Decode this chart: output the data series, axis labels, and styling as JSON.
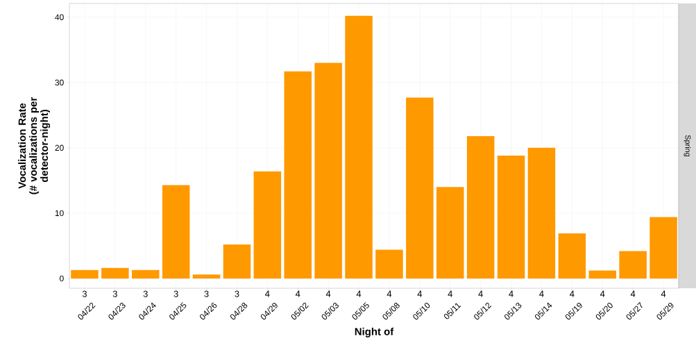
{
  "chart_data": {
    "type": "bar",
    "xlabel": "Night of",
    "ylabel": "Vocalization Rate\n(# vocalizations per\ndetector-night)",
    "categories": [
      "04/22",
      "04/23",
      "04/24",
      "04/25",
      "04/26",
      "04/28",
      "04/29",
      "05/02",
      "05/03",
      "05/05",
      "05/08",
      "05/10",
      "05/11",
      "05/12",
      "05/13",
      "05/14",
      "05/19",
      "05/20",
      "05/27",
      "05/29"
    ],
    "values": [
      1.3,
      1.6,
      1.3,
      14.3,
      0.6,
      5.2,
      16.4,
      31.7,
      33.0,
      40.2,
      4.4,
      27.7,
      14.0,
      21.8,
      18.8,
      20.0,
      6.9,
      1.2,
      4.2,
      9.4
    ],
    "color": "#ff9900",
    "ylim": [
      -1.5,
      42.1
    ],
    "yticks": [
      0,
      10,
      20,
      30,
      40
    ],
    "grid": true,
    "annotations": [
      "3",
      "3",
      "3",
      "3",
      "3",
      "3",
      "4",
      "4",
      "4",
      "4",
      "4",
      "4",
      "4",
      "4",
      "4",
      "4",
      "4",
      "4",
      "4",
      "4",
      "Spring"
    ]
  }
}
